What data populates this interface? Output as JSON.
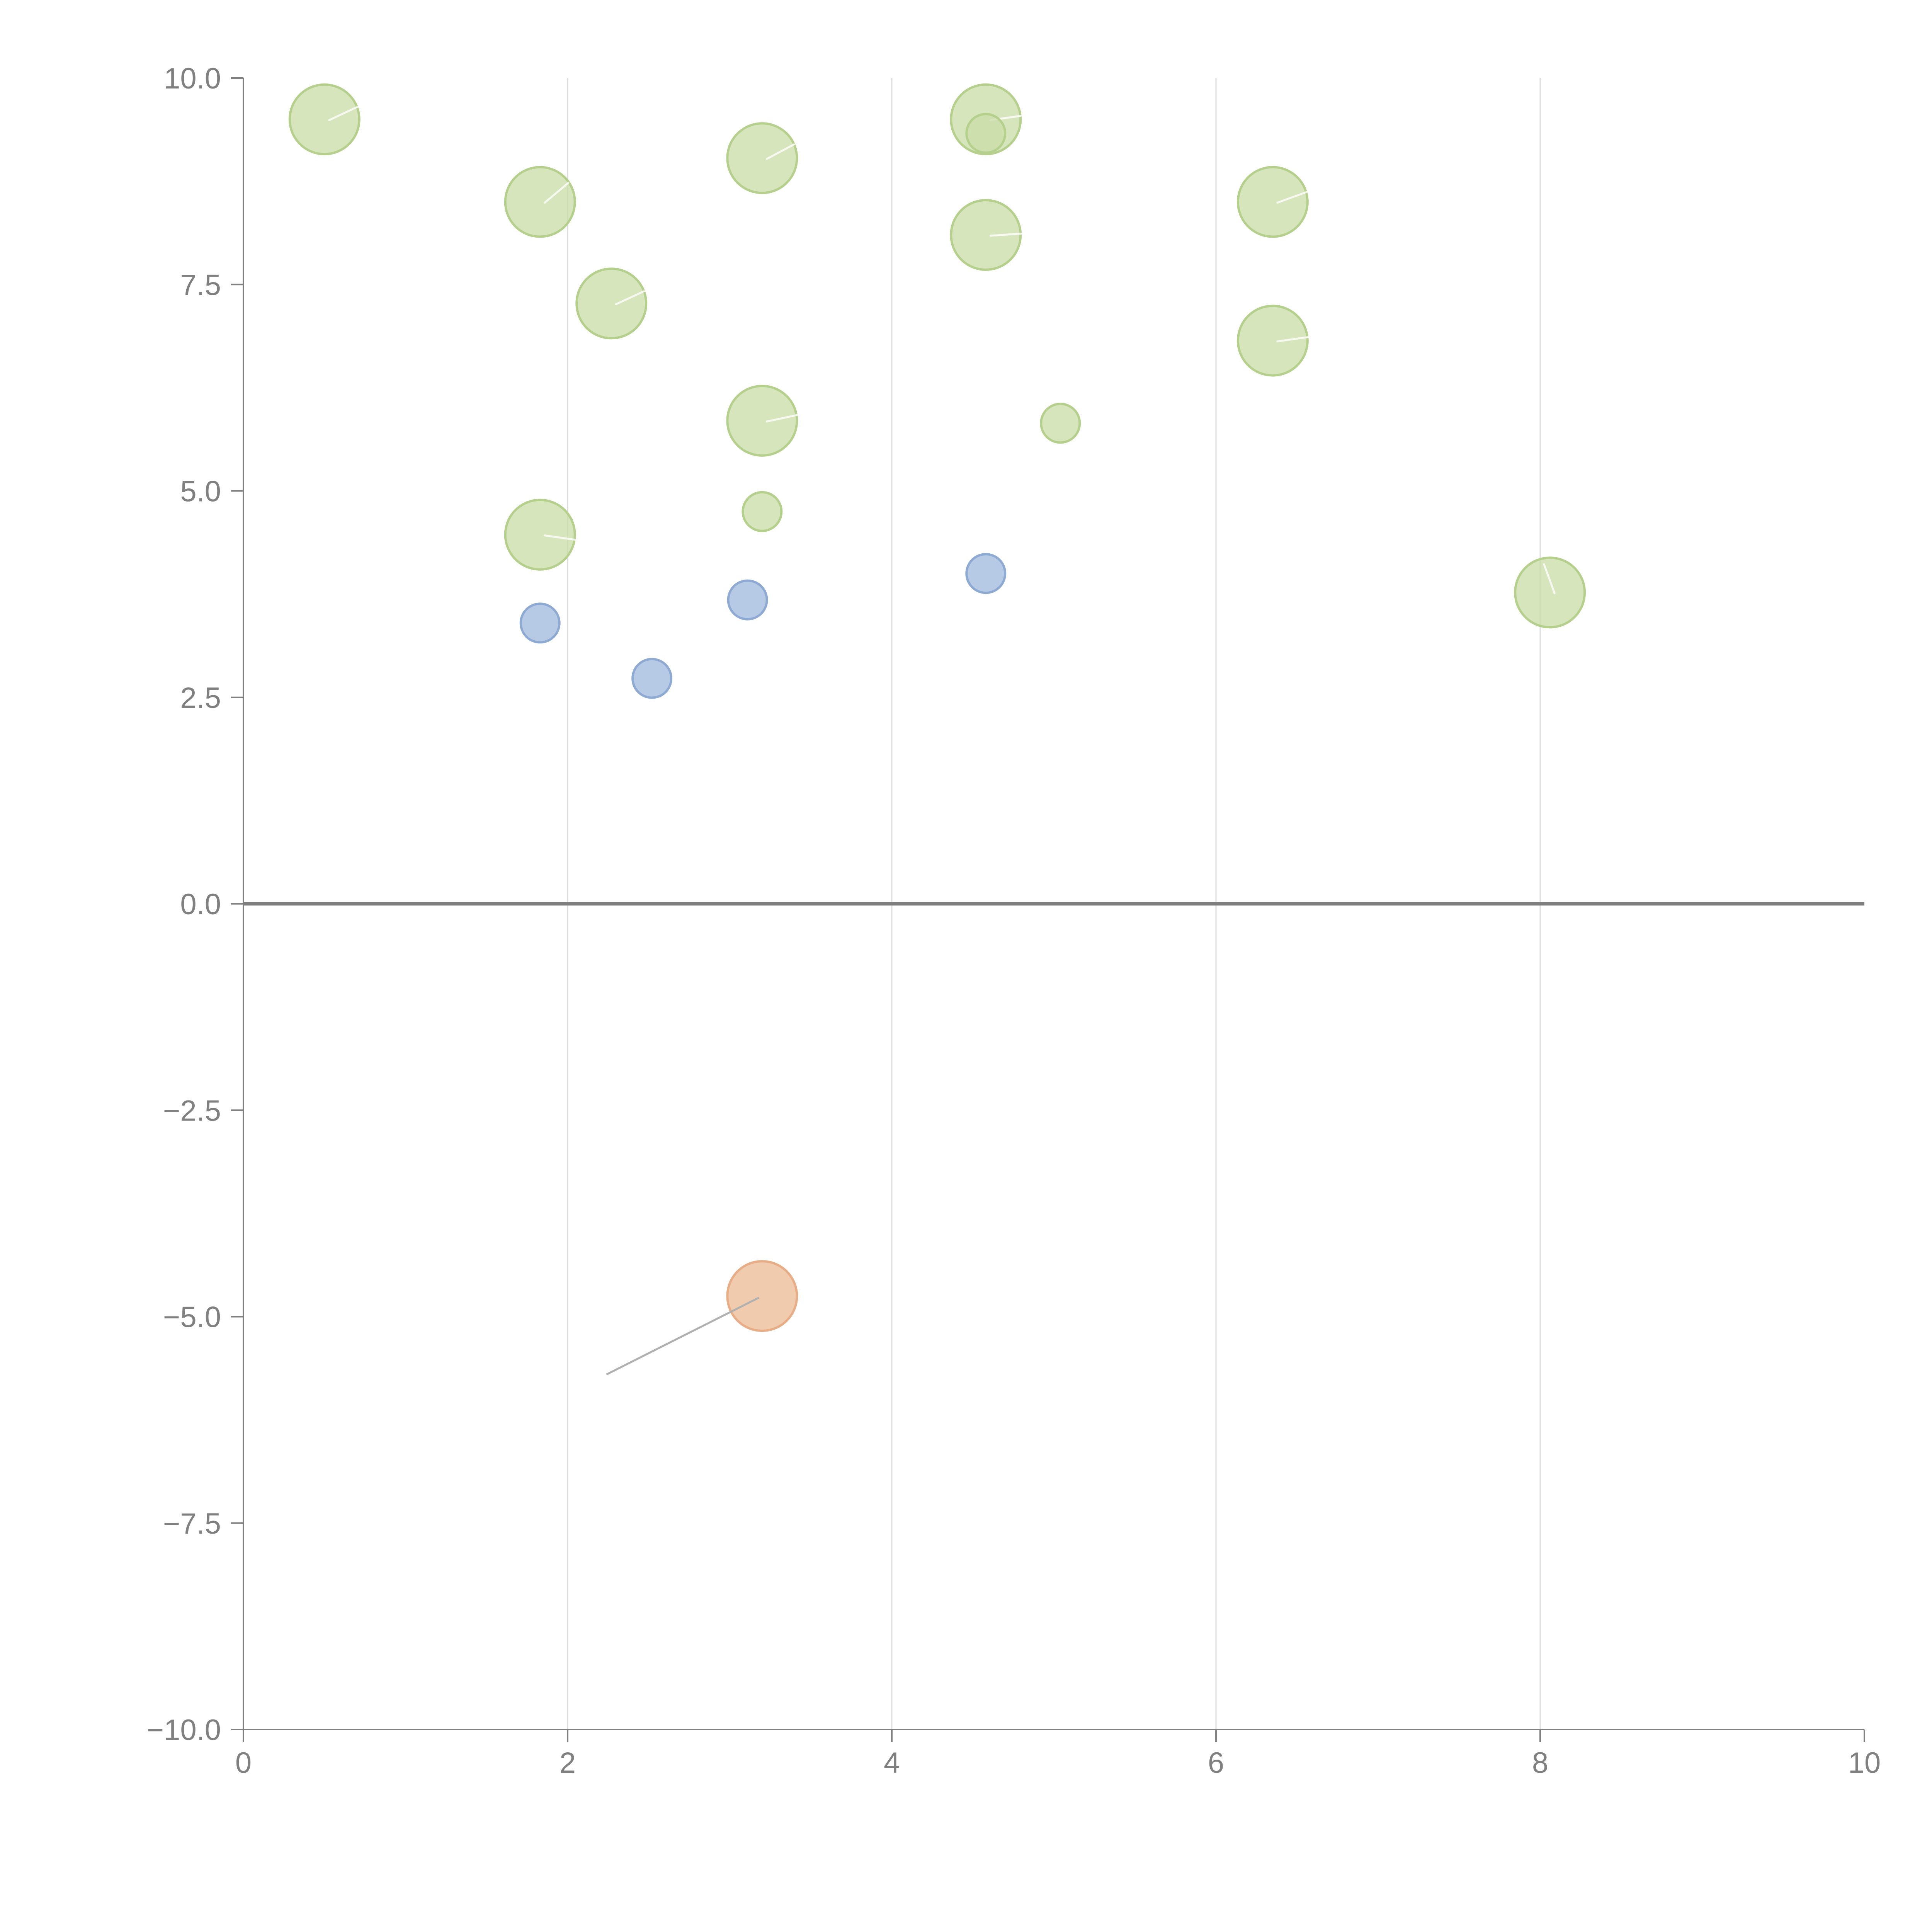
{
  "chart_data": {
    "type": "scatter",
    "title": "",
    "xlabel": "",
    "ylabel": "",
    "xlim": [
      0,
      10
    ],
    "ylim": [
      -10,
      10
    ],
    "x_ticks": [
      0,
      2,
      4,
      6,
      8,
      10
    ],
    "x_tick_labels": [
      "0",
      "2",
      "4",
      "6",
      "8",
      "10"
    ],
    "y_ticks": [
      10,
      7.5,
      5,
      2.5,
      0,
      -2.5,
      -5,
      -7.5,
      -10
    ],
    "y_tick_labels": [
      "10.0",
      "7.5",
      "5.0",
      "2.5",
      "0.0",
      "−2.5",
      "−5.0",
      "−7.5",
      "−10.0"
    ],
    "grid": "vertical",
    "legend": "none",
    "colors": {
      "green_fill": "#c9dca7",
      "green_stroke": "#b5cf8c",
      "blue_fill": "#a9bfe0",
      "blue_stroke": "#8eaad3",
      "orange_fill": "#efc2a0",
      "orange_stroke": "#e7ad86"
    },
    "series": [
      {
        "name": "green",
        "color": "green",
        "points": [
          {
            "x": 0.5,
            "y": 9.5,
            "size": 3
          },
          {
            "x": 1.83,
            "y": 8.5,
            "size": 3
          },
          {
            "x": 2.27,
            "y": 7.27,
            "size": 3
          },
          {
            "x": 3.2,
            "y": 9.03,
            "size": 3
          },
          {
            "x": 3.2,
            "y": 5.85,
            "size": 3
          },
          {
            "x": 3.2,
            "y": 4.75,
            "size": 1
          },
          {
            "x": 1.83,
            "y": 4.47,
            "size": 3
          },
          {
            "x": 4.58,
            "y": 9.5,
            "size": 3
          },
          {
            "x": 4.58,
            "y": 9.33,
            "size": 1
          },
          {
            "x": 4.58,
            "y": 8.1,
            "size": 3
          },
          {
            "x": 5.04,
            "y": 5.82,
            "size": 1
          },
          {
            "x": 6.35,
            "y": 8.5,
            "size": 3
          },
          {
            "x": 6.35,
            "y": 6.82,
            "size": 3
          },
          {
            "x": 8.06,
            "y": 3.77,
            "size": 3
          }
        ]
      },
      {
        "name": "blue",
        "color": "blue",
        "points": [
          {
            "x": 1.83,
            "y": 3.4,
            "size": 1
          },
          {
            "x": 2.52,
            "y": 2.73,
            "size": 1
          },
          {
            "x": 3.11,
            "y": 3.68,
            "size": 1
          },
          {
            "x": 4.58,
            "y": 4.0,
            "size": 1
          }
        ]
      },
      {
        "name": "orange",
        "color": "orange",
        "points": [
          {
            "x": 3.2,
            "y": -4.75,
            "size": 3
          }
        ]
      }
    ],
    "annotations": [
      {
        "type": "leader",
        "from": {
          "x": 3.18,
          "y": -4.77
        },
        "to": {
          "x": 2.24,
          "y": -5.7
        }
      }
    ]
  }
}
